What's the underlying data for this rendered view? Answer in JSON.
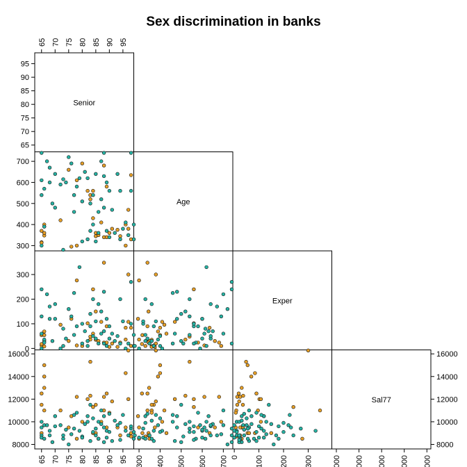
{
  "chart_data": {
    "type": "scatter",
    "plot_kind": "scatterplot-matrix-lower",
    "title": "Sex discrimination in banks",
    "variables": [
      {
        "name": "Senior",
        "lim": [
          62.5,
          99
        ],
        "ticks": [
          65,
          70,
          75,
          80,
          85,
          90,
          95
        ]
      },
      {
        "name": "Age",
        "lim": [
          275,
          745
        ],
        "ticks": [
          300,
          400,
          500,
          600,
          700
        ]
      },
      {
        "name": "Exper",
        "lim": [
          -6,
          396
        ],
        "ticks": [
          0,
          100,
          200,
          300
        ]
      },
      {
        "name": "Sal77",
        "lim": [
          7600,
          16350
        ],
        "ticks": [
          8000,
          10000,
          12000,
          14000,
          16000
        ]
      }
    ],
    "groups": [
      {
        "color": "#e69f27"
      },
      {
        "color": "#26b3a4"
      }
    ],
    "points": [
      [
        1,
        65,
        316,
        54,
        9000
      ],
      [
        1,
        65,
        370,
        12,
        11500
      ],
      [
        1,
        65,
        314,
        18,
        12500
      ],
      [
        1,
        66,
        348,
        30,
        13000
      ],
      [
        1,
        66,
        390,
        69,
        14000
      ],
      [
        1,
        66,
        400,
        54,
        15000
      ],
      [
        1,
        66,
        360,
        8,
        11000
      ],
      [
        1,
        72,
        420,
        96,
        11000
      ],
      [
        1,
        75,
        660,
        30,
        9500
      ],
      [
        1,
        76,
        295,
        120,
        10500
      ],
      [
        1,
        78,
        610,
        12,
        12200
      ],
      [
        1,
        78,
        300,
        276,
        8500
      ],
      [
        1,
        80,
        690,
        10,
        10000
      ],
      [
        1,
        82,
        560,
        102,
        12000
      ],
      [
        1,
        83,
        520,
        36,
        12300
      ],
      [
        1,
        83,
        540,
        48,
        15300
      ],
      [
        1,
        84,
        560,
        240,
        11300
      ],
      [
        1,
        84,
        430,
        60,
        9000
      ],
      [
        1,
        85,
        345,
        150,
        9000
      ],
      [
        1,
        85,
        360,
        35,
        11500
      ],
      [
        1,
        86,
        350,
        30,
        8500
      ],
      [
        1,
        87,
        410,
        108,
        10000
      ],
      [
        1,
        88,
        680,
        24,
        12200
      ],
      [
        1,
        88,
        340,
        348,
        11000
      ],
      [
        1,
        89,
        340,
        90,
        12500
      ],
      [
        1,
        89,
        580,
        24,
        9500
      ],
      [
        1,
        90,
        360,
        6,
        10800
      ],
      [
        1,
        91,
        380,
        20,
        11800
      ],
      [
        1,
        93,
        375,
        6,
        9500
      ],
      [
        1,
        94,
        345,
        24,
        8800
      ],
      [
        1,
        96,
        300,
        36,
        9500
      ],
      [
        1,
        96,
        400,
        84,
        14300
      ],
      [
        1,
        97,
        470,
        108,
        12000
      ],
      [
        1,
        97,
        380,
        300,
        16300
      ],
      [
        1,
        98,
        635,
        84,
        9000
      ],
      [
        1,
        98,
        330,
        10,
        8700
      ],
      [
        2,
        65,
        740,
        240,
        8800
      ],
      [
        2,
        65,
        610,
        60,
        9500
      ],
      [
        2,
        65,
        540,
        130,
        10000
      ],
      [
        2,
        65,
        300,
        0,
        8600
      ],
      [
        2,
        66,
        390,
        36,
        9700
      ],
      [
        2,
        66,
        570,
        24,
        8500
      ],
      [
        2,
        67,
        700,
        220,
        9700
      ],
      [
        2,
        68,
        670,
        170,
        8800
      ],
      [
        2,
        68,
        600,
        120,
        9200
      ],
      [
        2,
        69,
        500,
        30,
        8200
      ],
      [
        2,
        70,
        640,
        180,
        9600
      ],
      [
        2,
        70,
        480,
        120,
        10500
      ],
      [
        2,
        72,
        590,
        0,
        9700
      ],
      [
        2,
        73,
        280,
        10,
        8800
      ],
      [
        2,
        73,
        615,
        80,
        8500
      ],
      [
        2,
        74,
        600,
        40,
        9300
      ],
      [
        2,
        75,
        720,
        160,
        8000
      ],
      [
        2,
        76,
        690,
        130,
        8900
      ],
      [
        2,
        77,
        540,
        55,
        9400
      ],
      [
        2,
        77,
        460,
        225,
        10600
      ],
      [
        2,
        78,
        580,
        90,
        10800
      ],
      [
        2,
        79,
        620,
        330,
        9200
      ],
      [
        2,
        80,
        510,
        20,
        8700
      ],
      [
        2,
        80,
        320,
        100,
        8600
      ],
      [
        2,
        81,
        650,
        70,
        9800
      ],
      [
        2,
        82,
        620,
        10,
        10000
      ],
      [
        2,
        82,
        330,
        30,
        10500
      ],
      [
        2,
        83,
        500,
        140,
        11500
      ],
      [
        2,
        83,
        370,
        90,
        8300
      ],
      [
        2,
        84,
        540,
        200,
        9100
      ],
      [
        2,
        84,
        400,
        50,
        10300
      ],
      [
        2,
        85,
        640,
        40,
        8800
      ],
      [
        2,
        85,
        320,
        110,
        9400
      ],
      [
        2,
        86,
        460,
        20,
        10000
      ],
      [
        2,
        86,
        360,
        180,
        8500
      ],
      [
        2,
        87,
        700,
        60,
        11000
      ],
      [
        2,
        87,
        520,
        150,
        9800
      ],
      [
        2,
        88,
        740,
        20,
        8200
      ],
      [
        2,
        88,
        630,
        70,
        10500
      ],
      [
        2,
        88,
        480,
        230,
        9500
      ],
      [
        2,
        89,
        600,
        120,
        8600
      ],
      [
        2,
        89,
        370,
        10,
        9200
      ],
      [
        2,
        90,
        340,
        40,
        10700
      ],
      [
        2,
        90,
        560,
        90,
        9100
      ],
      [
        2,
        91,
        470,
        60,
        8300
      ],
      [
        2,
        92,
        360,
        30,
        10100
      ],
      [
        2,
        93,
        640,
        50,
        9700
      ],
      [
        2,
        94,
        330,
        200,
        9900
      ],
      [
        2,
        94,
        560,
        20,
        8400
      ],
      [
        2,
        95,
        380,
        110,
        10600
      ],
      [
        2,
        96,
        410,
        0,
        9200
      ],
      [
        2,
        97,
        350,
        20,
        8800
      ],
      [
        2,
        98,
        740,
        270,
        9400
      ],
      [
        2,
        98,
        560,
        100,
        9600
      ],
      [
        2,
        99,
        330,
        55,
        8500
      ],
      [
        2,
        99,
        400,
        10,
        9100
      ]
    ]
  }
}
